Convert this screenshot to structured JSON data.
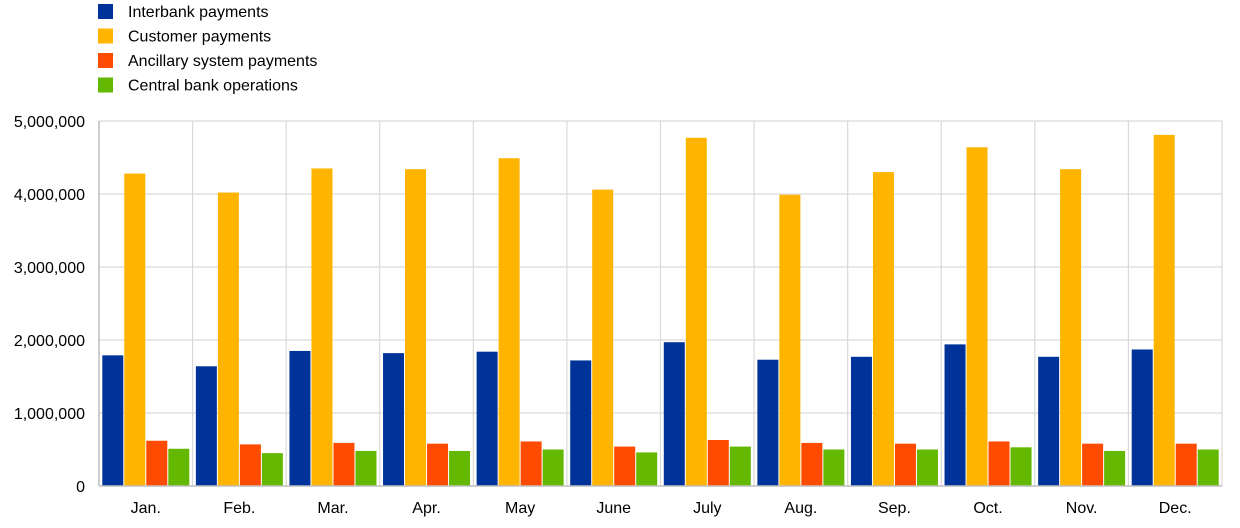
{
  "chart_data": {
    "type": "bar",
    "title": "",
    "xlabel": "",
    "ylabel": "",
    "ylim": [
      0,
      5000000
    ],
    "yticks": [
      0,
      1000000,
      2000000,
      3000000,
      4000000,
      5000000
    ],
    "ytick_labels": [
      "0",
      "1,000,000",
      "2,000,000",
      "3,000,000",
      "4,000,000",
      "5,000,000"
    ],
    "grid": true,
    "legend_position": "top-left",
    "categories": [
      "Jan.",
      "Feb.",
      "Mar.",
      "Apr.",
      "May",
      "June",
      "July",
      "Aug.",
      "Sep.",
      "Oct.",
      "Nov.",
      "Dec."
    ],
    "series": [
      {
        "name": "Interbank payments",
        "color": "#003399",
        "values": [
          1790000,
          1640000,
          1850000,
          1820000,
          1840000,
          1720000,
          1970000,
          1730000,
          1770000,
          1940000,
          1770000,
          1870000
        ]
      },
      {
        "name": "Customer payments",
        "color": "#FFB400",
        "values": [
          4280000,
          4020000,
          4350000,
          4340000,
          4490000,
          4060000,
          4770000,
          3990000,
          4300000,
          4640000,
          4340000,
          4810000
        ]
      },
      {
        "name": "Ancillary system payments",
        "color": "#FF4B00",
        "values": [
          620000,
          570000,
          590000,
          580000,
          610000,
          540000,
          630000,
          590000,
          580000,
          610000,
          580000,
          580000
        ]
      },
      {
        "name": "Central bank operations",
        "color": "#65B800",
        "values": [
          510000,
          450000,
          480000,
          480000,
          500000,
          460000,
          540000,
          500000,
          500000,
          530000,
          480000,
          500000
        ]
      }
    ]
  }
}
